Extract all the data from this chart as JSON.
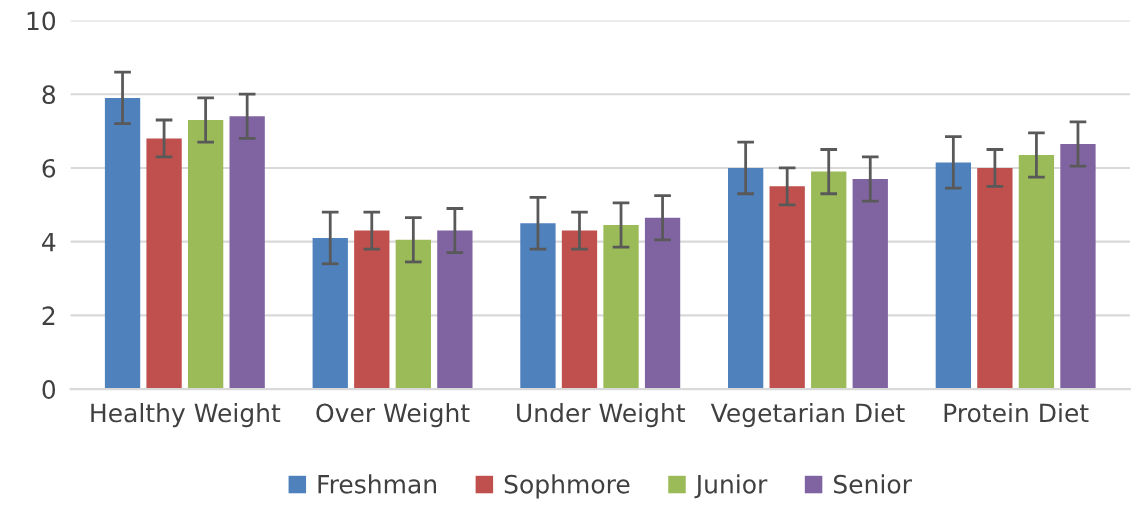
{
  "chart_data": {
    "type": "bar",
    "categories": [
      "Healthy Weight",
      "Over Weight",
      "Under Weight",
      "Vegetarian Diet",
      "Protein Diet"
    ],
    "series": [
      {
        "name": "Freshman",
        "color": "#4f81bd",
        "values": [
          7.9,
          4.1,
          4.5,
          6.0,
          6.15
        ],
        "errors": [
          0.7,
          0.7,
          0.7,
          0.7,
          0.7
        ]
      },
      {
        "name": "Sophmore",
        "color": "#c0504d",
        "values": [
          6.8,
          4.3,
          4.3,
          5.5,
          6.0
        ],
        "errors": [
          0.5,
          0.5,
          0.5,
          0.5,
          0.5
        ]
      },
      {
        "name": "Junior",
        "color": "#9bbb59",
        "values": [
          7.3,
          4.05,
          4.45,
          5.9,
          6.35
        ],
        "errors": [
          0.6,
          0.6,
          0.6,
          0.6,
          0.6
        ]
      },
      {
        "name": "Senior",
        "color": "#8064a2",
        "values": [
          7.4,
          4.3,
          4.65,
          5.7,
          6.65
        ],
        "errors": [
          0.6,
          0.6,
          0.6,
          0.6,
          0.6
        ]
      }
    ],
    "ylim": [
      0,
      10
    ],
    "yticks": [
      0,
      2,
      4,
      6,
      8,
      10
    ],
    "grid": "y",
    "legend": "bottom"
  }
}
